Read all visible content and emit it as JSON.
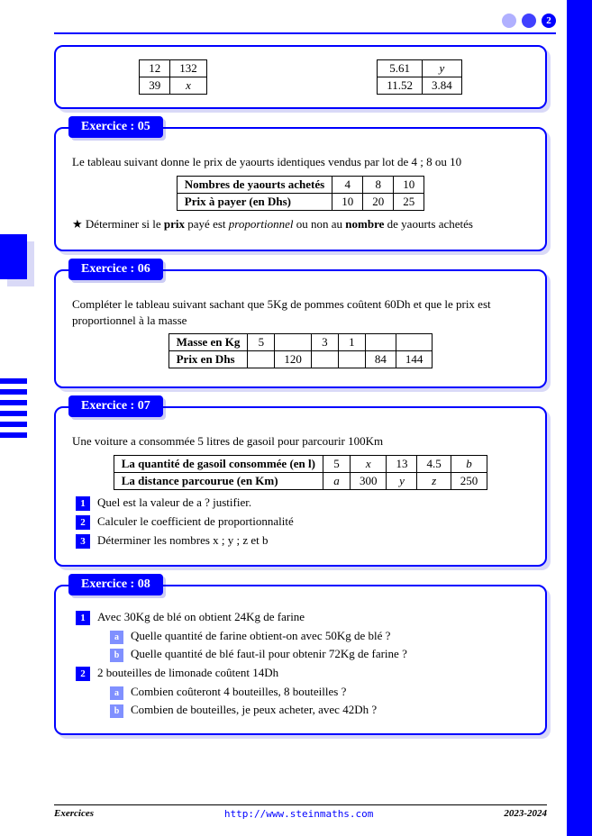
{
  "page_number": "2",
  "top_tables": {
    "left": {
      "rows": [
        [
          "12",
          "132"
        ],
        [
          "39",
          "x"
        ]
      ]
    },
    "right": {
      "rows": [
        [
          "5.61",
          "y"
        ],
        [
          "11.52",
          "3.84"
        ]
      ]
    }
  },
  "ex05": {
    "label": "Exercice : 05",
    "intro": "Le tableau suivant donne le prix de yaourts identiques vendus par lot de 4 ; 8 ou 10",
    "table": {
      "headers": [
        "Nombres de yaourts achetés",
        "Prix à payer (en Dhs)"
      ],
      "cols": [
        [
          "4",
          "10"
        ],
        [
          "8",
          "20"
        ],
        [
          "10",
          "25"
        ]
      ]
    },
    "task_pre": "Déterminer si le ",
    "task_b1": "prix",
    "task_mid1": " payé est ",
    "task_i": "proportionnel",
    "task_mid2": " ou non au ",
    "task_b2": "nombre",
    "task_post": " de yaourts achetés"
  },
  "ex06": {
    "label": "Exercice : 06",
    "intro": "Compléter le tableau suivant sachant que 5Kg de pommes coûtent 60Dh et que le prix est proportionnel à la masse",
    "table": {
      "row_headers": [
        "Masse en Kg",
        "Prix en Dhs"
      ],
      "rows": [
        [
          "5",
          "",
          "3",
          "1",
          "",
          ""
        ],
        [
          "",
          "120",
          "",
          "",
          "84",
          "144"
        ]
      ]
    }
  },
  "ex07": {
    "label": "Exercice : 07",
    "intro": "Une voiture a consommée 5 litres de gasoil pour parcourir 100Km",
    "table": {
      "row_headers": [
        "La quantité de gasoil consommée (en l)",
        "La distance parcourue (en Km)"
      ],
      "rows": [
        [
          "5",
          "x",
          "13",
          "4.5",
          "b"
        ],
        [
          "a",
          "300",
          "y",
          "z",
          "250"
        ]
      ]
    },
    "q1": "Quel est la valeur de a ? justifier.",
    "q2": "Calculer le coefficient de proportionnalité",
    "q3": "Déterminer les nombres x ; y ; z et b"
  },
  "ex08": {
    "label": "Exercice : 08",
    "q1": "Avec 30Kg de blé on obtient 24Kg de farine",
    "q1a": "Quelle quantité de farine obtient-on avec 50Kg de blé ?",
    "q1b": "Quelle quantité de blé faut-il pour obtenir 72Kg de farine ?",
    "q2": "2 bouteilles de limonade coûtent 14Dh",
    "q2a": "Combien coûteront 4 bouteilles, 8 bouteilles ?",
    "q2b": "Combien de bouteilles, je peux acheter, avec 42Dh ?"
  },
  "footer": {
    "left": "Exercices",
    "center": "http://www.steinmaths.com",
    "right": "2023-2024"
  },
  "labels": {
    "n1": "1",
    "n2": "2",
    "n3": "3",
    "a": "a",
    "b": "b"
  }
}
